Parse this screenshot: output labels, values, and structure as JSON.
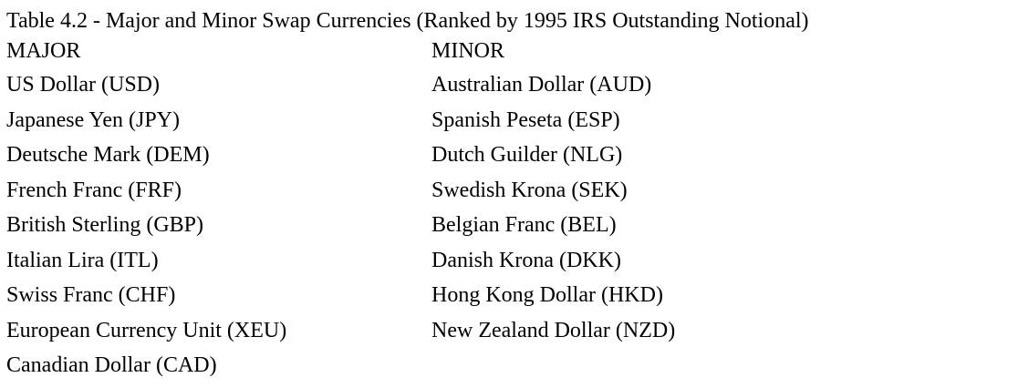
{
  "table": {
    "caption": "Table 4.2 - Major and Minor Swap Currencies (Ranked by 1995 IRS Outstanding Notional)",
    "major": {
      "heading": "MAJOR",
      "items": [
        "US Dollar (USD)",
        "Japanese Yen (JPY)",
        "Deutsche Mark (DEM)",
        "French Franc (FRF)",
        "British Sterling (GBP)",
        "Italian Lira (ITL)",
        "Swiss Franc (CHF)",
        "European Currency Unit (XEU)",
        "Canadian Dollar (CAD)"
      ]
    },
    "minor": {
      "heading": "MINOR",
      "items": [
        "Australian Dollar (AUD)",
        "Spanish Peseta (ESP)",
        "Dutch Guilder (NLG)",
        "Swedish Krona (SEK)",
        "Belgian Franc (BEL)",
        "Danish Krona (DKK)",
        "Hong Kong Dollar (HKD)",
        "New Zealand Dollar (NZD)"
      ]
    }
  }
}
